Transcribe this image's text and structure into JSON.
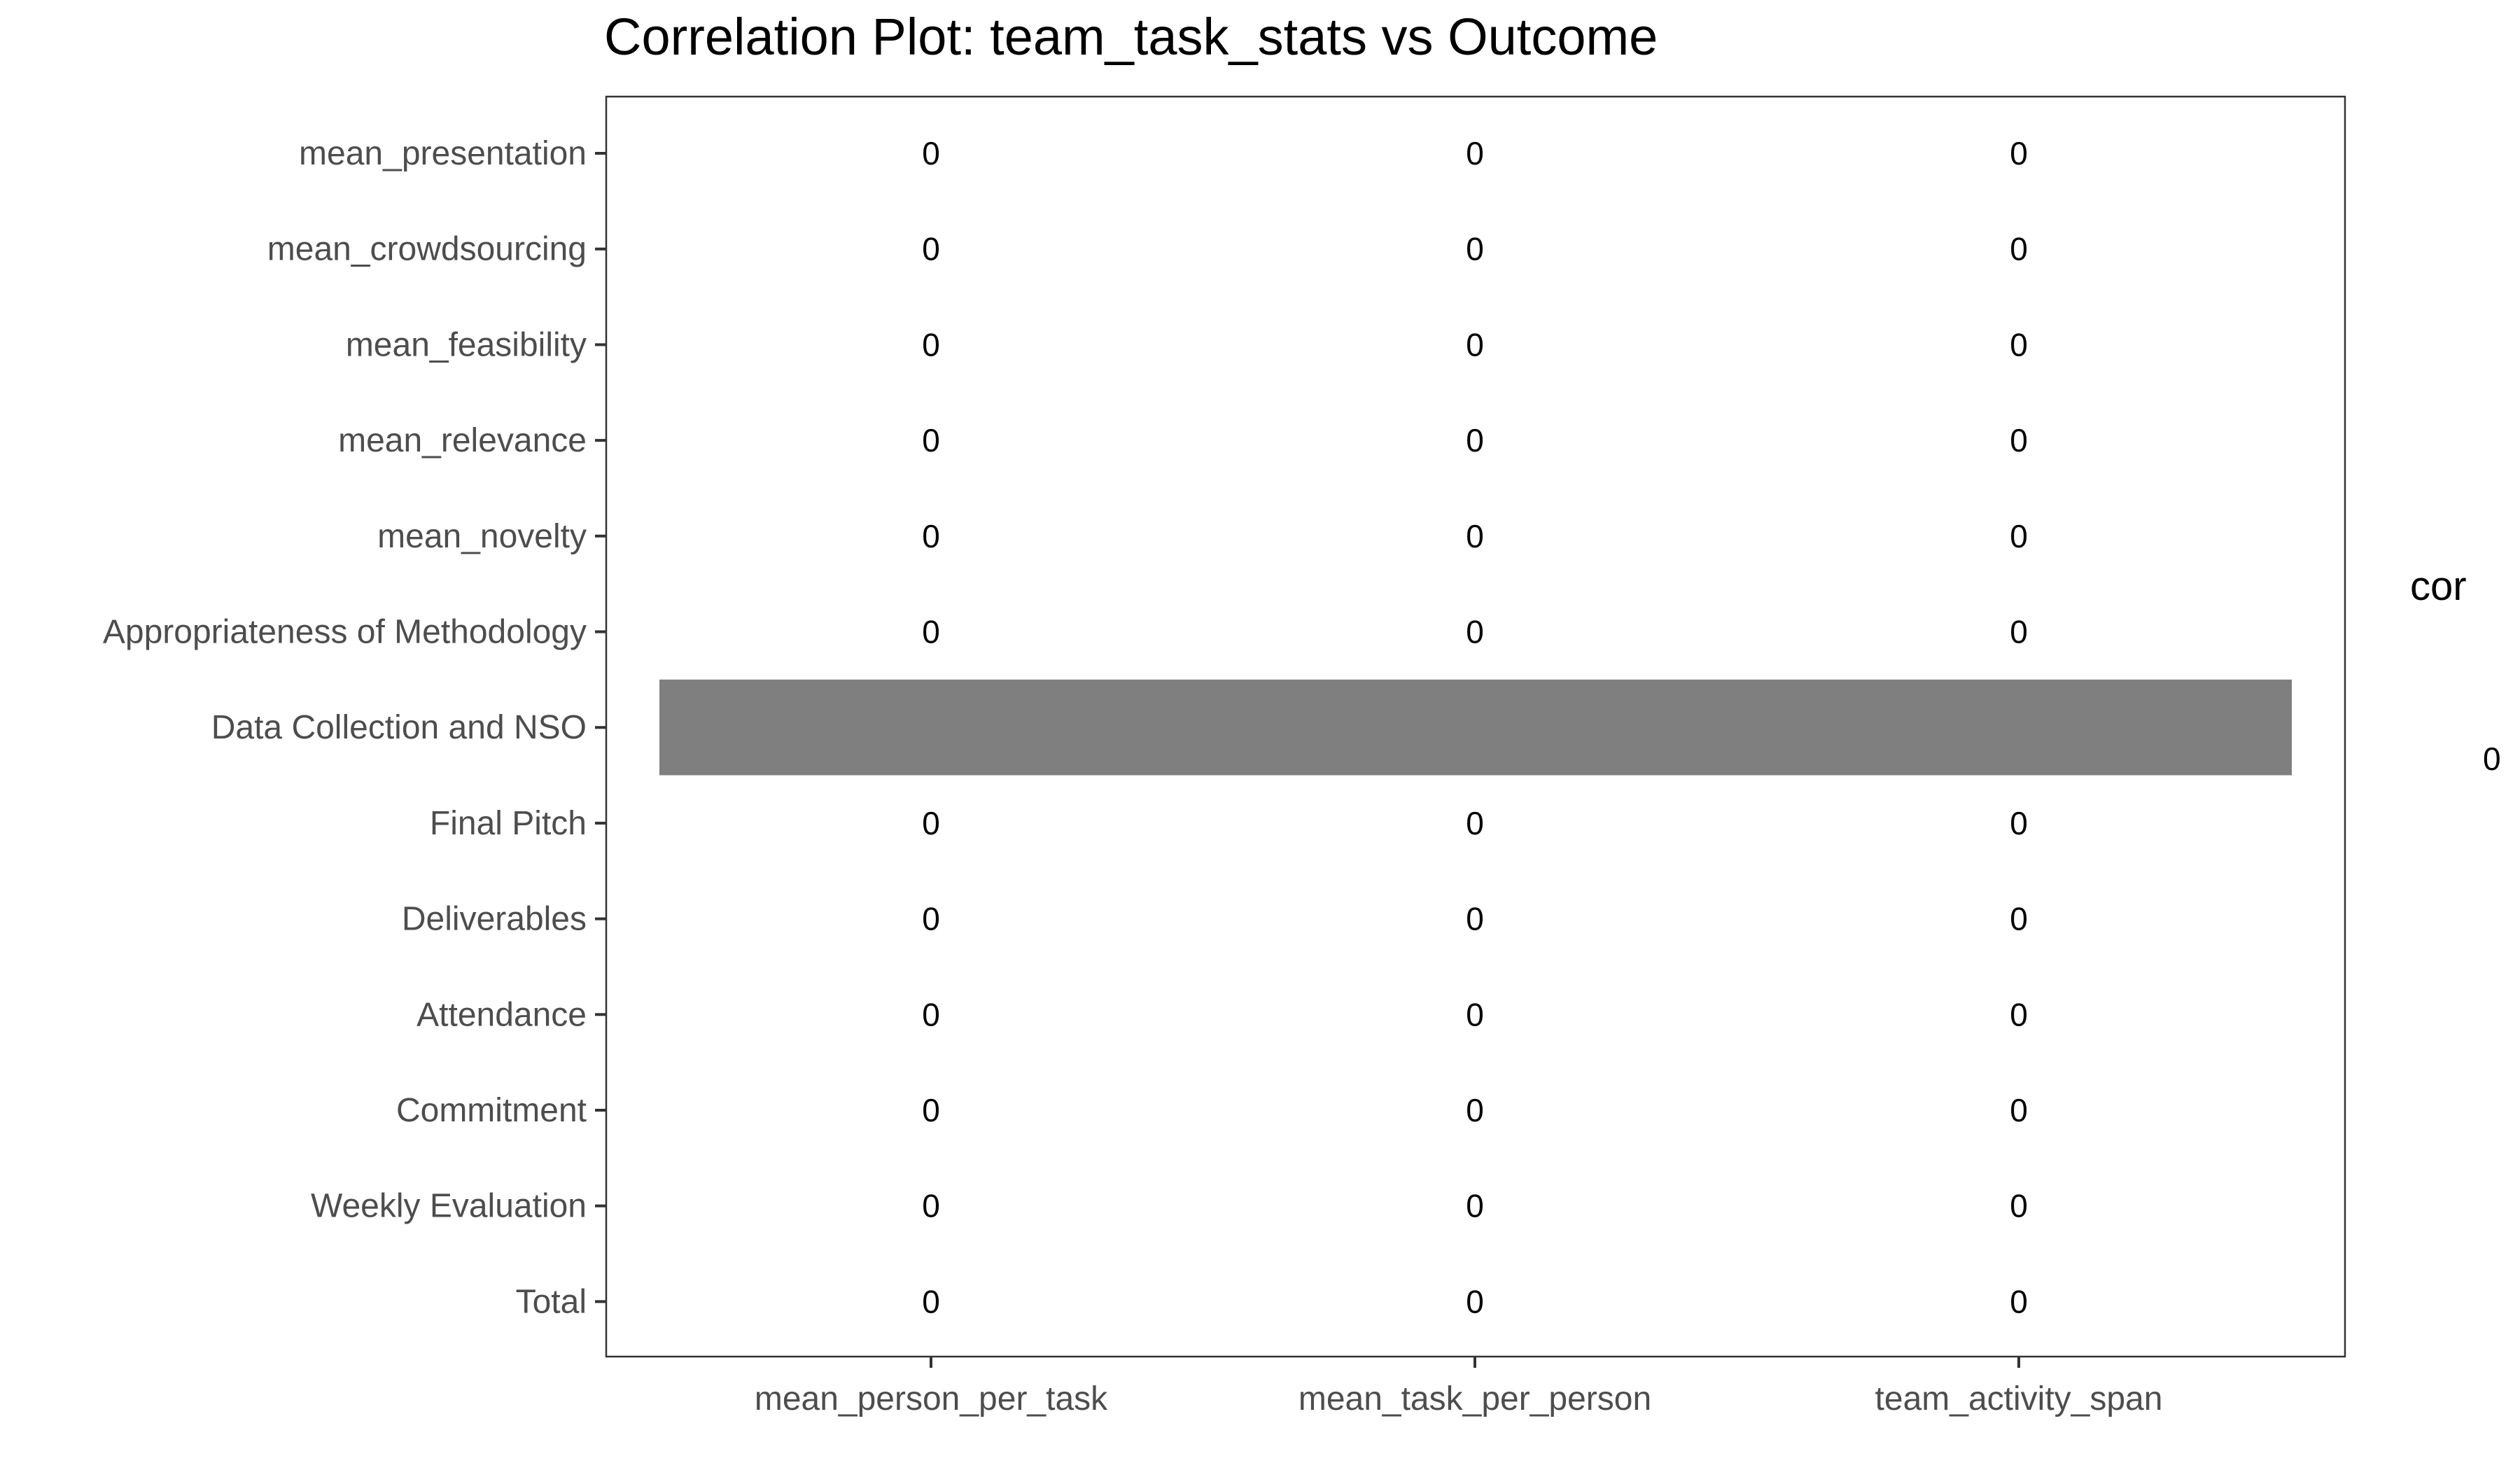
{
  "chart_data": {
    "type": "heatmap",
    "title": "Correlation Plot: team_task_stats vs Outcome",
    "x_categories": [
      "mean_person_per_task",
      "mean_task_per_person",
      "team_activity_span"
    ],
    "y_categories": [
      "mean_presentation",
      "mean_crowdsourcing",
      "mean_feasibility",
      "mean_relevance",
      "mean_novelty",
      "Appropriateness of Methodology",
      "Data Collection and NSO",
      "Final Pitch",
      "Deliverables",
      "Attendance",
      "Commitment",
      "Weekly Evaluation",
      "Total"
    ],
    "cells": [
      [
        "0",
        "0",
        "0"
      ],
      [
        "0",
        "0",
        "0"
      ],
      [
        "0",
        "0",
        "0"
      ],
      [
        "0",
        "0",
        "0"
      ],
      [
        "0",
        "0",
        "0"
      ],
      [
        "0",
        "0",
        "0"
      ],
      [
        null,
        null,
        null
      ],
      [
        "0",
        "0",
        "0"
      ],
      [
        "0",
        "0",
        "0"
      ],
      [
        "0",
        "0",
        "0"
      ],
      [
        "0",
        "0",
        "0"
      ],
      [
        "0",
        "0",
        "0"
      ],
      [
        "0",
        "0",
        "0"
      ]
    ],
    "na_fill_color": "#7f7f7f",
    "legend": {
      "title": "cor",
      "labels": [
        "0"
      ],
      "placement": "right"
    },
    "grid": false
  }
}
